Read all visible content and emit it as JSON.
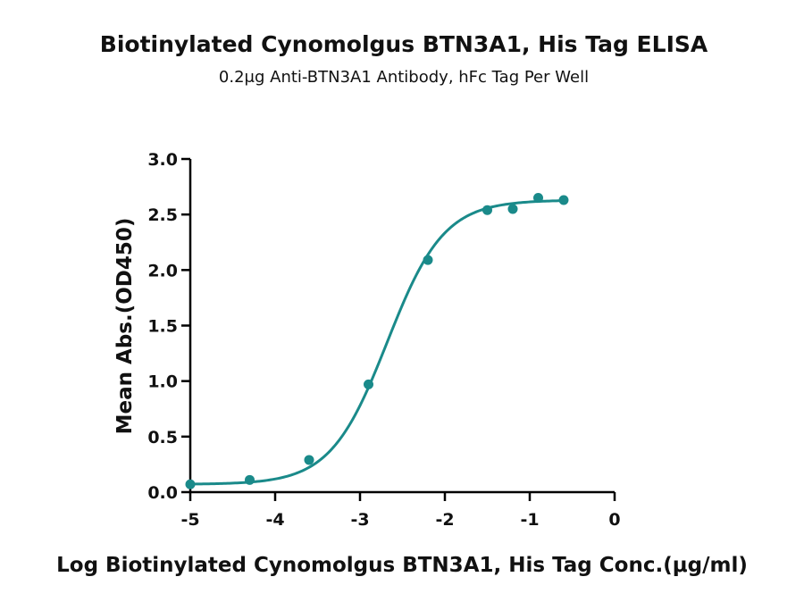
{
  "chart_data": {
    "type": "scatter",
    "title": "Biotinylated  Cynomolgus BTN3A1, His Tag ELISA",
    "subtitle": "0.2μg Anti-BTN3A1 Antibody, hFc Tag Per Well",
    "xlabel": "Log Biotinylated  Cynomolgus BTN3A1, His Tag Conc.(μg/ml)",
    "ylabel": "Mean Abs.(OD450)",
    "xlim": [
      -5,
      0
    ],
    "ylim": [
      0,
      3
    ],
    "x_ticks": [
      "-5",
      "-4",
      "-3",
      "-2",
      "-1",
      "0"
    ],
    "y_ticks": [
      "0.0",
      "0.5",
      "1.0",
      "1.5",
      "2.0",
      "2.5",
      "3.0"
    ],
    "grid": false,
    "series_color": "#1a8a8a",
    "series": [
      {
        "x": [
          -5.0,
          -4.3,
          -3.6,
          -2.9,
          -2.2,
          -1.5,
          -1.2,
          -0.9,
          -0.6
        ],
        "y": [
          0.07,
          0.11,
          0.29,
          0.97,
          2.09,
          2.54,
          2.55,
          2.65,
          2.63
        ]
      }
    ],
    "fit": {
      "model": "4PL",
      "bottom": 0.07,
      "top": 2.63,
      "log_ec50": -2.68,
      "hill": 1.3
    }
  }
}
